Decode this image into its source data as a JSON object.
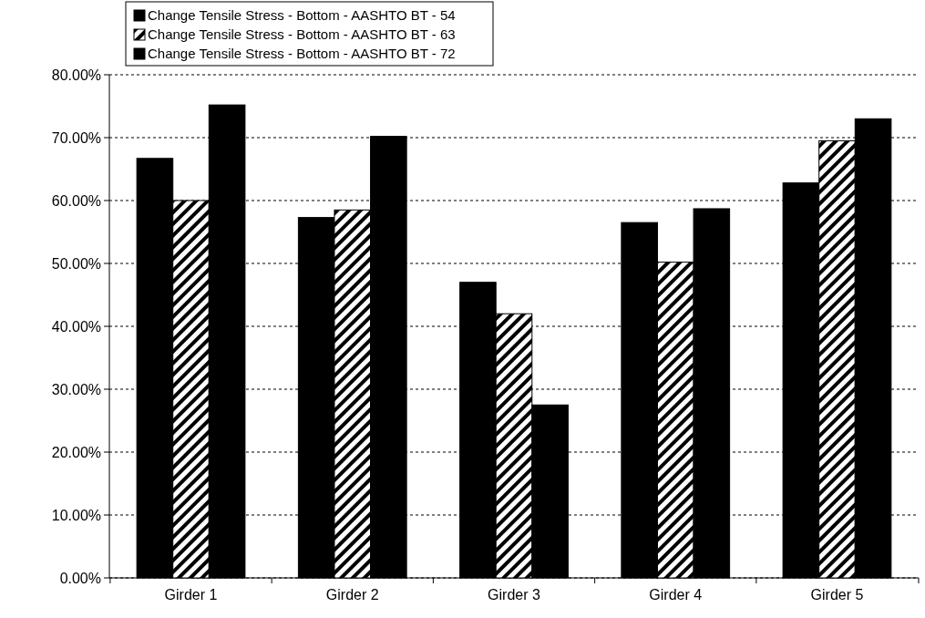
{
  "chart_data": {
    "type": "bar",
    "categories": [
      "Girder 1",
      "Girder 2",
      "Girder 3",
      "Girder 4",
      "Girder 5"
    ],
    "series": [
      {
        "name": "Change Tensile Stress - Bottom - AASHTO BT - 54",
        "color": "#000000",
        "values": [
          0.667,
          0.573,
          0.47,
          0.565,
          0.628
        ]
      },
      {
        "name": "Change Tensile Stress - Bottom - AASHTO BT - 63",
        "color": "#000000",
        "values": [
          0.6,
          0.585,
          0.42,
          0.502,
          0.695
        ]
      },
      {
        "name": "Change Tensile Stress - Bottom - AASHTO BT - 72",
        "color": "#000000",
        "values": [
          0.752,
          0.702,
          0.275,
          0.587,
          0.73
        ]
      }
    ],
    "ylim": [
      0,
      0.8
    ],
    "yticks": [
      {
        "value": 0,
        "label": "0.00%"
      },
      {
        "value": 0.1,
        "label": "10.00%"
      },
      {
        "value": 0.2,
        "label": "20.00%"
      },
      {
        "value": 0.3,
        "label": "30.00%"
      },
      {
        "value": 0.4,
        "label": "40.00%"
      },
      {
        "value": 0.5,
        "label": "50.00%"
      },
      {
        "value": 0.6,
        "label": "60.00%"
      },
      {
        "value": 0.7,
        "label": "70.00%"
      },
      {
        "value": 0.8,
        "label": "80.00%"
      }
    ],
    "grid": "y",
    "legend": "top left"
  }
}
